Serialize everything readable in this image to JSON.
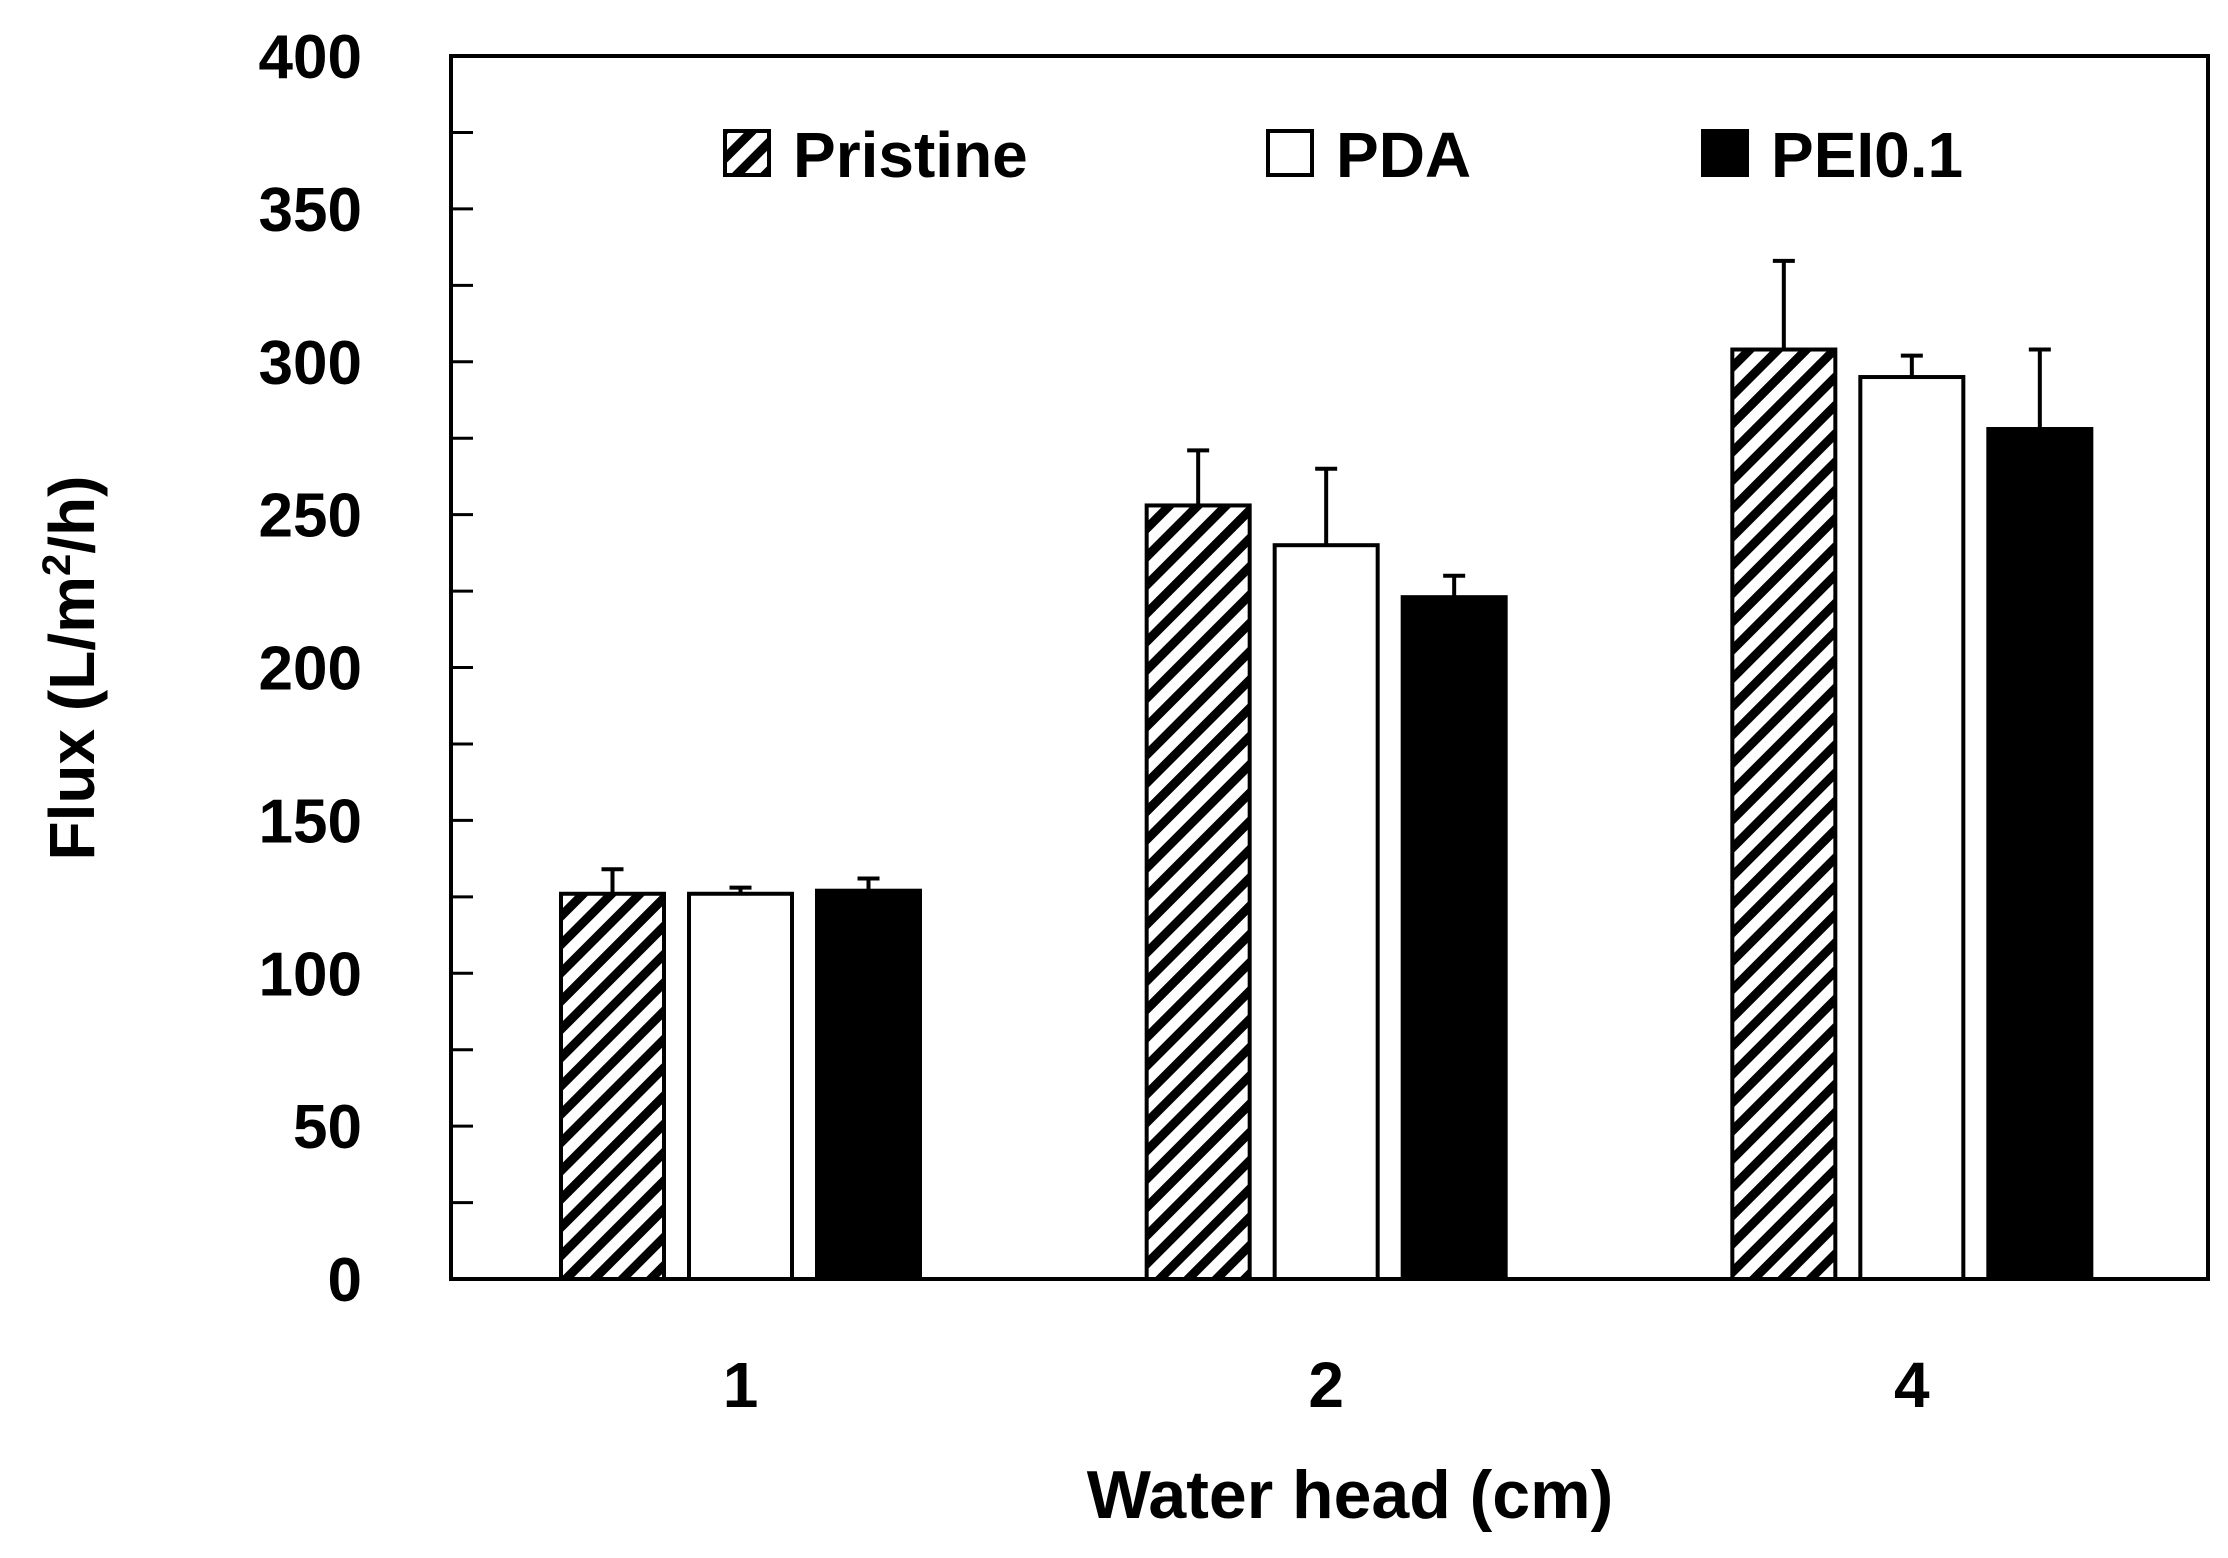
{
  "chart_data": {
    "type": "bar",
    "title": "",
    "xlabel": "Water head (cm)",
    "ylabel_main": "Flux (L/m",
    "ylabel_sup": "2",
    "ylabel_end": "/h)",
    "ylim": [
      0,
      400
    ],
    "yticks": [
      0,
      50,
      100,
      150,
      200,
      250,
      300,
      350,
      400
    ],
    "yminor_step": 25,
    "categories": [
      "1",
      "2",
      "4"
    ],
    "legend_position": "top",
    "series": [
      {
        "name": "Pristine",
        "fill": "hatch",
        "values": [
          126,
          253,
          304
        ],
        "errors": [
          8,
          18,
          29
        ]
      },
      {
        "name": "PDA",
        "fill": "#ffffff",
        "values": [
          126,
          240,
          295
        ],
        "errors": [
          2,
          25,
          7
        ]
      },
      {
        "name": "PEI0.1",
        "fill": "#000000",
        "values": [
          127,
          223,
          278
        ],
        "errors": [
          4,
          7,
          26
        ]
      }
    ],
    "colors": {
      "axis": "#000000",
      "hatch_stroke": "#000000",
      "background": "#ffffff"
    }
  }
}
